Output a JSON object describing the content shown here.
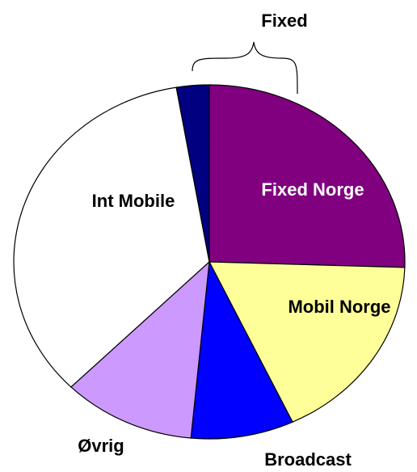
{
  "chart_data": {
    "type": "pie",
    "categories": [
      "Fixed Norge",
      "Mobil Norge",
      "Broadcast",
      "Øvrig",
      "Int Mobile",
      null
    ],
    "values": [
      25.5,
      17.5,
      8.5,
      11,
      34.8,
      2.7
    ],
    "colors": [
      "#800080",
      "#ffff99",
      "#0000ff",
      "#cc99ff",
      "#ffffff",
      "#000080"
    ],
    "annotation": "Fixed"
  }
}
